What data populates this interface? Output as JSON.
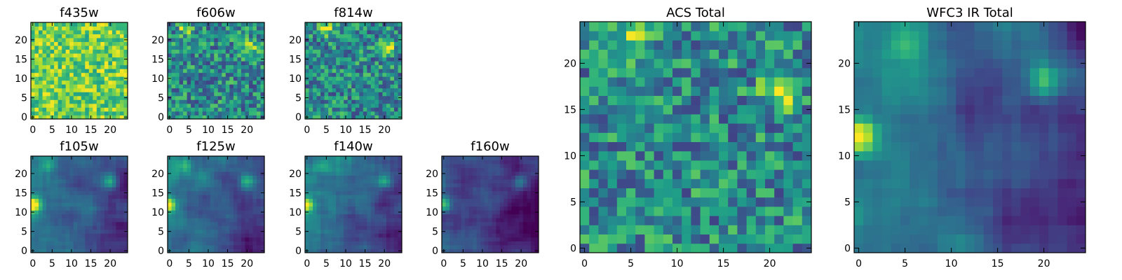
{
  "chart_data": [
    {
      "type": "heatmap",
      "title": "f435w",
      "xlim": [
        0,
        24
      ],
      "ylim": [
        0,
        24
      ],
      "xticks": [
        0,
        5,
        10,
        15,
        20
      ],
      "yticks": [
        0,
        5,
        10,
        15,
        20
      ],
      "colormap": "viridis",
      "pattern": "uniform_noise",
      "features": []
    },
    {
      "type": "heatmap",
      "title": "f606w",
      "xlim": [
        0,
        24
      ],
      "ylim": [
        0,
        24
      ],
      "xticks": [
        0,
        5,
        10,
        15,
        20
      ],
      "yticks": [
        0,
        5,
        10,
        15,
        20
      ],
      "colormap": "viridis",
      "pattern": "noise",
      "features": [
        {
          "x": 4,
          "y": 23,
          "amp": 0.35
        },
        {
          "x": 21,
          "y": 18,
          "amp": 0.4
        }
      ]
    },
    {
      "type": "heatmap",
      "title": "f814w",
      "xlim": [
        0,
        24
      ],
      "ylim": [
        0,
        24
      ],
      "xticks": [
        0,
        5,
        10,
        15,
        20
      ],
      "yticks": [
        0,
        5,
        10,
        15,
        20
      ],
      "colormap": "viridis",
      "pattern": "noise",
      "features": [
        {
          "x": 5,
          "y": 23,
          "amp": 0.4
        },
        {
          "x": 21,
          "y": 18,
          "amp": 0.45
        }
      ]
    },
    {
      "type": "heatmap",
      "title": "f105w",
      "xlim": [
        0,
        24
      ],
      "ylim": [
        0,
        24
      ],
      "xticks": [
        0,
        5,
        10,
        15,
        20
      ],
      "yticks": [
        0,
        5,
        10,
        15,
        20
      ],
      "colormap": "viridis",
      "pattern": "smooth",
      "features": [
        {
          "x": 0,
          "y": 12,
          "amp": 0.6
        },
        {
          "x": 20,
          "y": 18,
          "amp": 0.45
        },
        {
          "x": 4,
          "y": 22,
          "amp": 0.25
        }
      ]
    },
    {
      "type": "heatmap",
      "title": "f125w",
      "xlim": [
        0,
        24
      ],
      "ylim": [
        0,
        24
      ],
      "xticks": [
        0,
        5,
        10,
        15,
        20
      ],
      "yticks": [
        0,
        5,
        10,
        15,
        20
      ],
      "colormap": "viridis",
      "pattern": "smooth",
      "features": [
        {
          "x": 0,
          "y": 12,
          "amp": 0.65
        },
        {
          "x": 20,
          "y": 18,
          "amp": 0.45
        },
        {
          "x": 4,
          "y": 22,
          "amp": 0.25
        }
      ]
    },
    {
      "type": "heatmap",
      "title": "f140w",
      "xlim": [
        0,
        24
      ],
      "ylim": [
        0,
        24
      ],
      "xticks": [
        0,
        5,
        10,
        15,
        20
      ],
      "yticks": [
        0,
        5,
        10,
        15,
        20
      ],
      "colormap": "viridis",
      "pattern": "smooth",
      "features": [
        {
          "x": 0,
          "y": 12,
          "amp": 0.65
        },
        {
          "x": 20,
          "y": 18,
          "amp": 0.4
        },
        {
          "x": 4,
          "y": 22,
          "amp": 0.2
        }
      ]
    },
    {
      "type": "heatmap",
      "title": "f160w",
      "xlim": [
        0,
        24
      ],
      "ylim": [
        0,
        24
      ],
      "xticks": [
        0,
        5,
        10,
        15,
        20
      ],
      "yticks": [
        0,
        5,
        10,
        15,
        20
      ],
      "colormap": "viridis",
      "pattern": "smooth_dark",
      "features": [
        {
          "x": 0,
          "y": 12,
          "amp": 0.6
        },
        {
          "x": 20,
          "y": 18,
          "amp": 0.35
        }
      ]
    },
    {
      "type": "heatmap",
      "title": "ACS Total",
      "xlim": [
        0,
        24
      ],
      "ylim": [
        0,
        24
      ],
      "xticks": [
        0,
        5,
        10,
        15,
        20
      ],
      "yticks": [
        0,
        5,
        10,
        15,
        20
      ],
      "colormap": "viridis",
      "pattern": "noise",
      "features": [
        {
          "x": 5,
          "y": 23,
          "amp": 0.4
        },
        {
          "x": 21,
          "y": 17,
          "amp": 0.45
        }
      ]
    },
    {
      "type": "heatmap",
      "title": "WFC3 IR Total",
      "xlim": [
        0,
        24
      ],
      "ylim": [
        0,
        24
      ],
      "xticks": [
        0,
        5,
        10,
        15,
        20
      ],
      "yticks": [
        0,
        5,
        10,
        15,
        20
      ],
      "colormap": "viridis",
      "pattern": "smooth",
      "features": [
        {
          "x": 0,
          "y": 12,
          "amp": 0.65
        },
        {
          "x": 20,
          "y": 18,
          "amp": 0.4
        },
        {
          "x": 5,
          "y": 22,
          "amp": 0.25
        }
      ]
    }
  ]
}
